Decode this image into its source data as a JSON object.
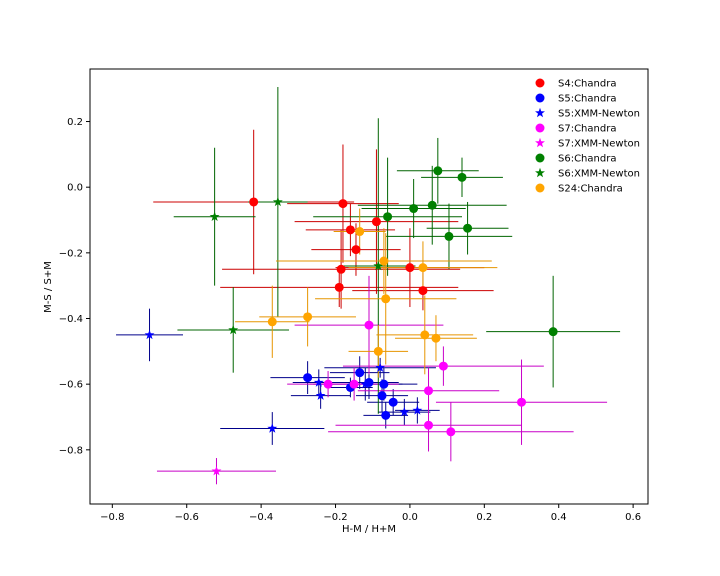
{
  "chart_data": {
    "type": "scatter",
    "title": "",
    "xlabel": "H-M / H+M",
    "ylabel": "M-S / S+M",
    "xlim": [
      -0.86,
      0.64
    ],
    "ylim": [
      -0.965,
      0.36
    ],
    "xticks": [
      -0.8,
      -0.6,
      -0.4,
      -0.2,
      0.0,
      0.2,
      0.4,
      0.6
    ],
    "xtick_labels": [
      "−0.8",
      "−0.6",
      "−0.4",
      "−0.2",
      "0.0",
      "0.2",
      "0.4",
      "0.6"
    ],
    "yticks": [
      0.2,
      0.0,
      -0.2,
      -0.4,
      -0.6,
      -0.8
    ],
    "ytick_labels": [
      "0.2",
      "0.0",
      "−0.2",
      "−0.4",
      "−0.6",
      "−0.8"
    ],
    "grid": false,
    "legend_position": "top-right",
    "series": [
      {
        "name": "S4:Chandra",
        "color": "#ff0000",
        "ecolor": "#cc0000",
        "marker": "circle",
        "points": [
          {
            "x": -0.42,
            "y": -0.045,
            "xerr": 0.27,
            "yerr": 0.22
          },
          {
            "x": -0.18,
            "y": -0.05,
            "xerr": 0.15,
            "yerr": 0.18
          },
          {
            "x": -0.09,
            "y": -0.105,
            "xerr": 0.22,
            "yerr": 0.22
          },
          {
            "x": -0.16,
            "y": -0.13,
            "xerr": 0.12,
            "yerr": 0.08
          },
          {
            "x": -0.145,
            "y": -0.19,
            "xerr": 0.12,
            "yerr": 0.08
          },
          {
            "x": -0.185,
            "y": -0.25,
            "xerr": 0.32,
            "yerr": 0.12
          },
          {
            "x": 0.0,
            "y": -0.245,
            "xerr": 0.2,
            "yerr": 0.12
          },
          {
            "x": -0.19,
            "y": -0.305,
            "xerr": 0.32,
            "yerr": 0.06
          },
          {
            "x": 0.035,
            "y": -0.315,
            "xerr": 0.19,
            "yerr": 0.06
          }
        ]
      },
      {
        "name": "S5:Chandra",
        "color": "#0000ff",
        "ecolor": "#00008b",
        "marker": "circle",
        "points": [
          {
            "x": -0.135,
            "y": -0.565,
            "xerr": 0.08,
            "yerr": 0.05
          },
          {
            "x": -0.275,
            "y": -0.58,
            "xerr": 0.1,
            "yerr": 0.05
          },
          {
            "x": -0.11,
            "y": -0.595,
            "xerr": 0.08,
            "yerr": 0.05
          },
          {
            "x": -0.07,
            "y": -0.6,
            "xerr": 0.05,
            "yerr": 0.05
          },
          {
            "x": -0.16,
            "y": -0.61,
            "xerr": 0.06,
            "yerr": 0.03
          },
          {
            "x": -0.075,
            "y": -0.635,
            "xerr": 0.07,
            "yerr": 0.05
          },
          {
            "x": -0.045,
            "y": -0.655,
            "xerr": 0.07,
            "yerr": 0.04
          },
          {
            "x": -0.065,
            "y": -0.695,
            "xerr": 0.06,
            "yerr": 0.04
          }
        ]
      },
      {
        "name": "S5:XMM-Newton",
        "color": "#0000ff",
        "ecolor": "#00008b",
        "marker": "star",
        "points": [
          {
            "x": -0.7,
            "y": -0.45,
            "xerr": 0.09,
            "yerr": 0.08
          },
          {
            "x": -0.24,
            "y": -0.635,
            "xerr": 0.08,
            "yerr": 0.04
          },
          {
            "x": -0.245,
            "y": -0.595,
            "xerr": 0.07,
            "yerr": 0.04
          },
          {
            "x": -0.08,
            "y": -0.55,
            "xerr": 0.15,
            "yerr": 0.03
          },
          {
            "x": -0.12,
            "y": -0.6,
            "xerr": 0.14,
            "yerr": 0.05
          },
          {
            "x": -0.37,
            "y": -0.735,
            "xerr": 0.14,
            "yerr": 0.05
          },
          {
            "x": -0.015,
            "y": -0.685,
            "xerr": 0.07,
            "yerr": 0.04
          },
          {
            "x": 0.02,
            "y": -0.68,
            "xerr": 0.06,
            "yerr": 0.04
          }
        ]
      },
      {
        "name": "S7:Chandra",
        "color": "#ff00ff",
        "ecolor": "#c800c8",
        "marker": "circle",
        "points": [
          {
            "x": -0.11,
            "y": -0.42,
            "xerr": 0.2,
            "yerr": 0.15
          },
          {
            "x": -0.15,
            "y": -0.6,
            "xerr": 0.12,
            "yerr": 0.05
          },
          {
            "x": -0.22,
            "y": -0.6,
            "xerr": 0.11,
            "yerr": 0.04
          },
          {
            "x": 0.09,
            "y": -0.545,
            "xerr": 0.27,
            "yerr": 0.06
          },
          {
            "x": 0.05,
            "y": -0.62,
            "xerr": 0.19,
            "yerr": 0.07
          },
          {
            "x": 0.3,
            "y": -0.655,
            "xerr": 0.23,
            "yerr": 0.13
          },
          {
            "x": 0.05,
            "y": -0.725,
            "xerr": 0.25,
            "yerr": 0.08
          },
          {
            "x": 0.11,
            "y": -0.745,
            "xerr": 0.33,
            "yerr": 0.09
          }
        ]
      },
      {
        "name": "S7:XMM-Newton",
        "color": "#ff00ff",
        "ecolor": "#c800c8",
        "marker": "star",
        "points": [
          {
            "x": -0.52,
            "y": -0.865,
            "xerr": 0.16,
            "yerr": 0.04
          }
        ]
      },
      {
        "name": "S6:Chandra",
        "color": "#008000",
        "ecolor": "#006400",
        "marker": "circle",
        "points": [
          {
            "x": 0.075,
            "y": 0.05,
            "xerr": 0.11,
            "yerr": 0.1
          },
          {
            "x": 0.14,
            "y": 0.03,
            "xerr": 0.11,
            "yerr": 0.06
          },
          {
            "x": 0.06,
            "y": -0.055,
            "xerr": 0.2,
            "yerr": 0.12
          },
          {
            "x": 0.01,
            "y": -0.065,
            "xerr": 0.14,
            "yerr": 0.09
          },
          {
            "x": -0.06,
            "y": -0.09,
            "xerr": 0.2,
            "yerr": 0.18
          },
          {
            "x": 0.105,
            "y": -0.15,
            "xerr": 0.17,
            "yerr": 0.1
          },
          {
            "x": 0.155,
            "y": -0.125,
            "xerr": 0.11,
            "yerr": 0.08
          },
          {
            "x": 0.385,
            "y": -0.44,
            "xerr": 0.18,
            "yerr": 0.17
          }
        ]
      },
      {
        "name": "S6:XMM-Newton",
        "color": "#008000",
        "ecolor": "#006400",
        "marker": "star",
        "points": [
          {
            "x": -0.525,
            "y": -0.09,
            "xerr": 0.11,
            "yerr": 0.21
          },
          {
            "x": -0.355,
            "y": -0.045,
            "xerr": 0.08,
            "yerr": 0.35
          },
          {
            "x": -0.475,
            "y": -0.435,
            "xerr": 0.15,
            "yerr": 0.13
          },
          {
            "x": -0.085,
            "y": -0.24,
            "xerr": 0.1,
            "yerr": 0.45
          }
        ]
      },
      {
        "name": "S24:Chandra",
        "color": "#ffa500",
        "ecolor": "#e69500",
        "marker": "circle",
        "points": [
          {
            "x": -0.135,
            "y": -0.135,
            "xerr": 0.07,
            "yerr": 0.07
          },
          {
            "x": -0.07,
            "y": -0.225,
            "xerr": 0.29,
            "yerr": 0.1
          },
          {
            "x": 0.035,
            "y": -0.245,
            "xerr": 0.2,
            "yerr": 0.08
          },
          {
            "x": -0.065,
            "y": -0.34,
            "xerr": 0.19,
            "yerr": 0.2
          },
          {
            "x": -0.37,
            "y": -0.41,
            "xerr": 0.1,
            "yerr": 0.11
          },
          {
            "x": -0.275,
            "y": -0.395,
            "xerr": 0.13,
            "yerr": 0.09
          },
          {
            "x": 0.04,
            "y": -0.45,
            "xerr": 0.13,
            "yerr": 0.12
          },
          {
            "x": 0.07,
            "y": -0.46,
            "xerr": 0.11,
            "yerr": 0.07
          },
          {
            "x": -0.085,
            "y": -0.5,
            "xerr": 0.08,
            "yerr": 0.08
          }
        ]
      }
    ]
  }
}
